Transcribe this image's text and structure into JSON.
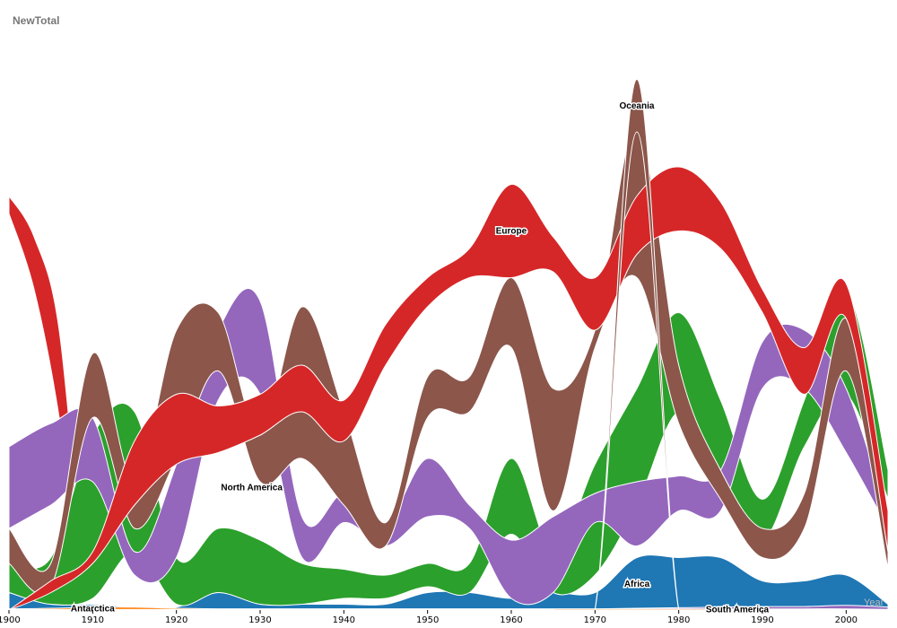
{
  "chart_data": {
    "type": "area",
    "title": "NewTotal",
    "xlabel": "Year",
    "ylabel": "",
    "xlim": [
      1900,
      2005
    ],
    "ylim": [
      0,
      100
    ],
    "grid": false,
    "x": [
      1900,
      1905,
      1910,
      1915,
      1920,
      1925,
      1930,
      1935,
      1940,
      1945,
      1950,
      1955,
      1960,
      1965,
      1970,
      1975,
      1980,
      1985,
      1990,
      1995,
      2000,
      2005
    ],
    "series": [
      {
        "name": "Africa",
        "color": "#1f77b4",
        "label_x": 1975,
        "bands": [
          [
            0,
            3
          ],
          [
            0,
            1
          ],
          [
            0,
            1
          ],
          [
            0,
            0.5
          ],
          [
            0,
            0.5
          ],
          [
            0,
            3
          ],
          [
            0,
            1
          ],
          [
            0,
            1
          ],
          [
            0,
            1
          ],
          [
            0,
            1
          ],
          [
            0,
            3
          ],
          [
            0,
            3
          ],
          [
            0,
            2
          ],
          [
            0,
            3
          ],
          [
            0,
            3
          ],
          [
            0,
            9
          ],
          [
            0,
            9
          ],
          [
            0,
            9
          ],
          [
            0,
            5
          ],
          [
            0,
            5
          ],
          [
            0,
            6
          ],
          [
            0,
            1
          ]
        ]
      },
      {
        "name": "South America",
        "color": "#9467bd",
        "label_x": 1987,
        "bands": [
          [
            0,
            0.2
          ],
          [
            0,
            0.2
          ],
          [
            0,
            0.2
          ],
          [
            0,
            0.2
          ],
          [
            0,
            0.2
          ],
          [
            0,
            0.2
          ],
          [
            0,
            0.2
          ],
          [
            0,
            0.2
          ],
          [
            0,
            0.2
          ],
          [
            0,
            0.2
          ],
          [
            0,
            0.2
          ],
          [
            0,
            0.2
          ],
          [
            0,
            0.2
          ],
          [
            0,
            0.2
          ],
          [
            0,
            0.2
          ],
          [
            0,
            0.3
          ],
          [
            0,
            0.4
          ],
          [
            0,
            0.5
          ],
          [
            0,
            0.6
          ],
          [
            0,
            0.6
          ],
          [
            0,
            0.8
          ],
          [
            0,
            0.5
          ]
        ]
      },
      {
        "name": "Antarctica",
        "color": "#ff7f0e",
        "label_x": 1910,
        "bands": [
          [
            0,
            0.2
          ],
          [
            0,
            0.3
          ],
          [
            0,
            0.5
          ],
          [
            0,
            0.5
          ],
          [
            0,
            0.3
          ],
          [
            0,
            0.2
          ],
          [
            0,
            0.2
          ],
          [
            0,
            0.2
          ],
          [
            0,
            0.2
          ],
          [
            0,
            0.2
          ],
          [
            0,
            0.2
          ],
          [
            0,
            0.2
          ],
          [
            0,
            0.2
          ],
          [
            0,
            0.2
          ],
          [
            0,
            0.2
          ],
          [
            0,
            0.2
          ],
          [
            0,
            0.2
          ],
          [
            0,
            0.2
          ],
          [
            0,
            0.2
          ],
          [
            0,
            0.2
          ],
          [
            0,
            0.2
          ],
          [
            0,
            0.1
          ]
        ]
      },
      {
        "name": "",
        "color": "#2ca02c",
        "label_x": null,
        "bands": [
          [
            3,
            8
          ],
          [
            1,
            9
          ],
          [
            2,
            30
          ],
          [
            10,
            34
          ],
          [
            1,
            9
          ],
          [
            3,
            14
          ],
          [
            1,
            12
          ],
          [
            1,
            8
          ],
          [
            2,
            7
          ],
          [
            2,
            6
          ],
          [
            4,
            8
          ],
          [
            3,
            8
          ],
          [
            13,
            26
          ],
          [
            3,
            10
          ],
          [
            6,
            25
          ],
          [
            18,
            38
          ],
          [
            34,
            51
          ],
          [
            24,
            36
          ],
          [
            12,
            19
          ],
          [
            28,
            36
          ],
          [
            37,
            55
          ],
          [
            19,
            24
          ]
        ]
      },
      {
        "name": "North America",
        "color": "#9467bd",
        "label_x": 1929,
        "bands": [
          [
            14,
            28
          ],
          [
            18,
            32
          ],
          [
            22,
            33
          ],
          [
            6,
            10
          ],
          [
            9,
            25
          ],
          [
            36,
            48
          ],
          [
            37,
            53
          ],
          [
            9,
            16
          ],
          [
            15,
            20
          ],
          [
            11,
            15
          ],
          [
            16,
            26
          ],
          [
            14,
            18
          ],
          [
            2,
            12
          ],
          [
            3,
            16
          ],
          [
            15,
            20
          ],
          [
            11,
            22
          ],
          [
            17,
            23
          ],
          [
            17,
            24
          ],
          [
            38,
            46
          ],
          [
            38,
            48
          ],
          [
            27,
            38
          ],
          [
            14,
            16
          ]
        ]
      },
      {
        "name": "",
        "color": "#8c564b",
        "label_x": null,
        "bands": [
          [
            8,
            14
          ],
          [
            4,
            8
          ],
          [
            33,
            44
          ],
          [
            14,
            22
          ],
          [
            26,
            48
          ],
          [
            41,
            51
          ],
          [
            22,
            30
          ],
          [
            26,
            52
          ],
          [
            18,
            34
          ],
          [
            11,
            15
          ],
          [
            33,
            40
          ],
          [
            34,
            40
          ],
          [
            45,
            57
          ],
          [
            17,
            38
          ],
          [
            45,
            48
          ],
          [
            57,
            83
          ],
          [
            32,
            42
          ],
          [
            19,
            24
          ],
          [
            9,
            14
          ],
          [
            14,
            20
          ],
          [
            41,
            50
          ],
          [
            7,
            10
          ]
        ]
      },
      {
        "name": "Europe",
        "color": "#d62728",
        "label_x": 1960,
        "bands": [
          [
            0,
            0
          ],
          [
            3,
            5
          ],
          [
            8,
            10
          ],
          [
            18,
            29
          ],
          [
            25,
            37
          ],
          [
            27,
            35
          ],
          [
            30,
            37
          ],
          [
            34,
            42
          ],
          [
            29,
            36
          ],
          [
            42,
            49
          ],
          [
            52,
            57
          ],
          [
            57,
            62
          ],
          [
            57,
            73
          ],
          [
            58,
            64
          ],
          [
            48,
            57
          ],
          [
            61,
            71
          ],
          [
            65,
            76
          ],
          [
            62,
            70
          ],
          [
            51,
            55
          ],
          [
            37,
            45
          ],
          [
            50,
            56
          ],
          [
            10,
            17
          ]
        ]
      },
      {
        "name": "Oceania",
        "color": "#8c564b",
        "label_x": 1975,
        "bands": [
          [
            0,
            0.1
          ],
          [
            0,
            0.1
          ],
          [
            0,
            0.1
          ],
          [
            0,
            0.1
          ],
          [
            0,
            0.1
          ],
          [
            0,
            0.1
          ],
          [
            0,
            0.1
          ],
          [
            0,
            0.1
          ],
          [
            0,
            0.1
          ],
          [
            0,
            0.1
          ],
          [
            0,
            0.1
          ],
          [
            0,
            0.1
          ],
          [
            0,
            0.1
          ],
          [
            0,
            0.1
          ],
          [
            0,
            0.1
          ],
          [
            82,
            91
          ],
          [
            0,
            0.1
          ],
          [
            0,
            0.1
          ],
          [
            0,
            0.1
          ],
          [
            0,
            0.1
          ],
          [
            0,
            0.1
          ],
          [
            0,
            0.1
          ]
        ]
      }
    ],
    "extra_band": {
      "color": "#d62728",
      "x": [
        1900,
        1903,
        1906,
        1909
      ],
      "top": [
        71,
        64,
        48,
        3
      ],
      "bottom": [
        68,
        55,
        33,
        0
      ]
    }
  }
}
